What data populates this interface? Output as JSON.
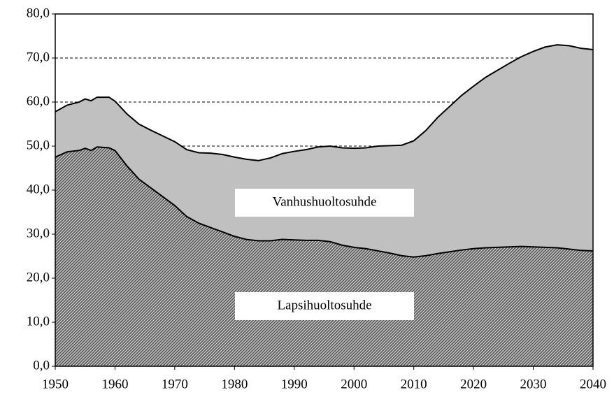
{
  "chart_data": {
    "type": "stacked_area",
    "x": [
      1950,
      1952,
      1954,
      1955,
      1956,
      1957,
      1959,
      1960,
      1962,
      1964,
      1966,
      1968,
      1970,
      1972,
      1974,
      1976,
      1978,
      1980,
      1982,
      1984,
      1986,
      1988,
      1990,
      1992,
      1994,
      1996,
      1998,
      2000,
      2002,
      2004,
      2006,
      2008,
      2010,
      2012,
      2014,
      2016,
      2018,
      2020,
      2022,
      2024,
      2026,
      2028,
      2030,
      2032,
      2034,
      2036,
      2038,
      2040
    ],
    "series": [
      {
        "name": "Lapsihuoltosuhde",
        "color": "#5a5a5a",
        "values": [
          47.5,
          48.7,
          49.0,
          49.5,
          49.0,
          49.8,
          49.6,
          49.0,
          45.5,
          42.5,
          40.5,
          38.5,
          36.5,
          34.0,
          32.5,
          31.5,
          30.5,
          29.5,
          28.8,
          28.5,
          28.5,
          28.8,
          28.7,
          28.6,
          28.6,
          28.3,
          27.5,
          27.0,
          26.7,
          26.2,
          25.7,
          25.1,
          24.8,
          25.1,
          25.6,
          26.0,
          26.4,
          26.7,
          26.9,
          27.0,
          27.1,
          27.2,
          27.1,
          27.0,
          26.9,
          26.6,
          26.3,
          26.2
        ]
      },
      {
        "name": "Vanhushuoltosuhde",
        "color": "#c0c0c0",
        "values": [
          10.3,
          10.6,
          11.0,
          11.2,
          11.3,
          11.3,
          11.5,
          11.2,
          11.8,
          12.5,
          13.1,
          13.8,
          14.5,
          15.2,
          16.0,
          16.9,
          17.6,
          18.0,
          18.2,
          18.2,
          18.8,
          19.5,
          20.1,
          20.6,
          21.2,
          21.7,
          22.1,
          22.5,
          22.9,
          23.8,
          24.4,
          25.1,
          26.4,
          28.4,
          30.9,
          33.0,
          35.1,
          36.9,
          38.7,
          40.2,
          41.7,
          43.1,
          44.4,
          45.5,
          46.1,
          46.2,
          45.9,
          45.7
        ]
      }
    ],
    "xlim": [
      1950,
      2040
    ],
    "xticks": [
      1950,
      1960,
      1970,
      1980,
      1990,
      2000,
      2010,
      2020,
      2030,
      2040
    ],
    "ylim": [
      0,
      80
    ],
    "yticks": [
      {
        "value": 0,
        "label": "0,0"
      },
      {
        "value": 10,
        "label": "10,0"
      },
      {
        "value": 20,
        "label": "20,0"
      },
      {
        "value": 30,
        "label": "30,0"
      },
      {
        "value": 40,
        "label": "40,0"
      },
      {
        "value": 50,
        "label": "50,0"
      },
      {
        "value": 60,
        "label": "60,0"
      },
      {
        "value": 70,
        "label": "70,0"
      },
      {
        "value": 80,
        "label": "80,0"
      }
    ],
    "grid": true
  }
}
